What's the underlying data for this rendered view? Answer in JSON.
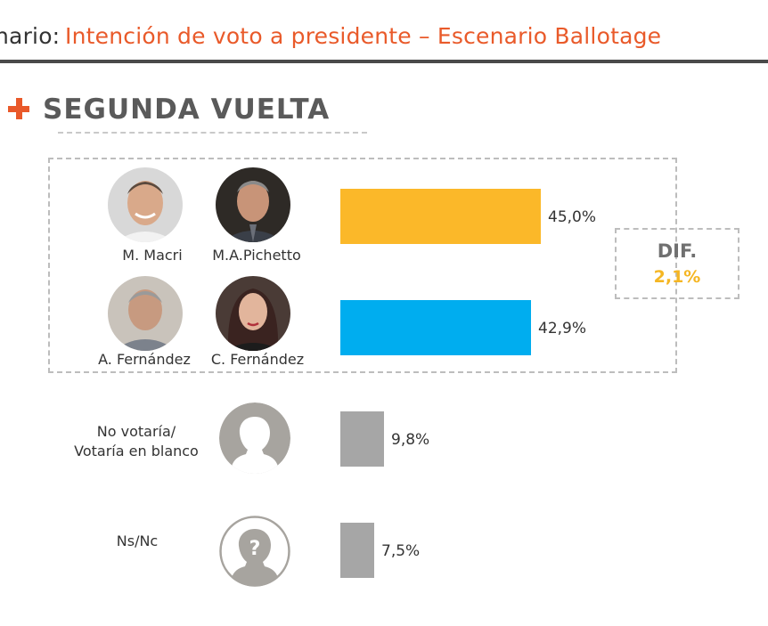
{
  "header": {
    "prefix": "nario:",
    "title": "Intención de voto a presidente – Escenario Ballotage"
  },
  "section": {
    "title": "SEGUNDA VUELTA"
  },
  "candidates": {
    "macri": "M. Macri",
    "pichetto": "M.A.Pichetto",
    "afernandez": "A. Fernández",
    "cfernandez": "C. Fernández"
  },
  "others": {
    "blank_line1": "No votaría/",
    "blank_line2": "Votaría en blanco",
    "nsnc": "Ns/Nc"
  },
  "difference": {
    "label": "DIF.",
    "value": "2,1%"
  },
  "colors": {
    "accent": "#e95a2a",
    "macri_pichetto": "#fbb829",
    "fernandez_fernandez": "#00adef",
    "other": "#a6a6a6",
    "diff_value": "#f5b623"
  },
  "icons": {
    "blank": "person-silhouette-icon",
    "nsnc": "person-question-icon"
  },
  "chart_data": {
    "type": "bar",
    "orientation": "horizontal",
    "categories": [
      "M. Macri / M.A.Pichetto",
      "A. Fernández / C. Fernández",
      "No votaría/Votaría en blanco",
      "Ns/Nc"
    ],
    "values": [
      45.0,
      42.9,
      9.8,
      7.5
    ],
    "value_labels": [
      "45,0%",
      "42,9%",
      "9,8%",
      "7,5%"
    ],
    "title": "SEGUNDA VUELTA",
    "xlim": [
      0,
      45.0
    ],
    "grid": false,
    "legend": "none"
  }
}
